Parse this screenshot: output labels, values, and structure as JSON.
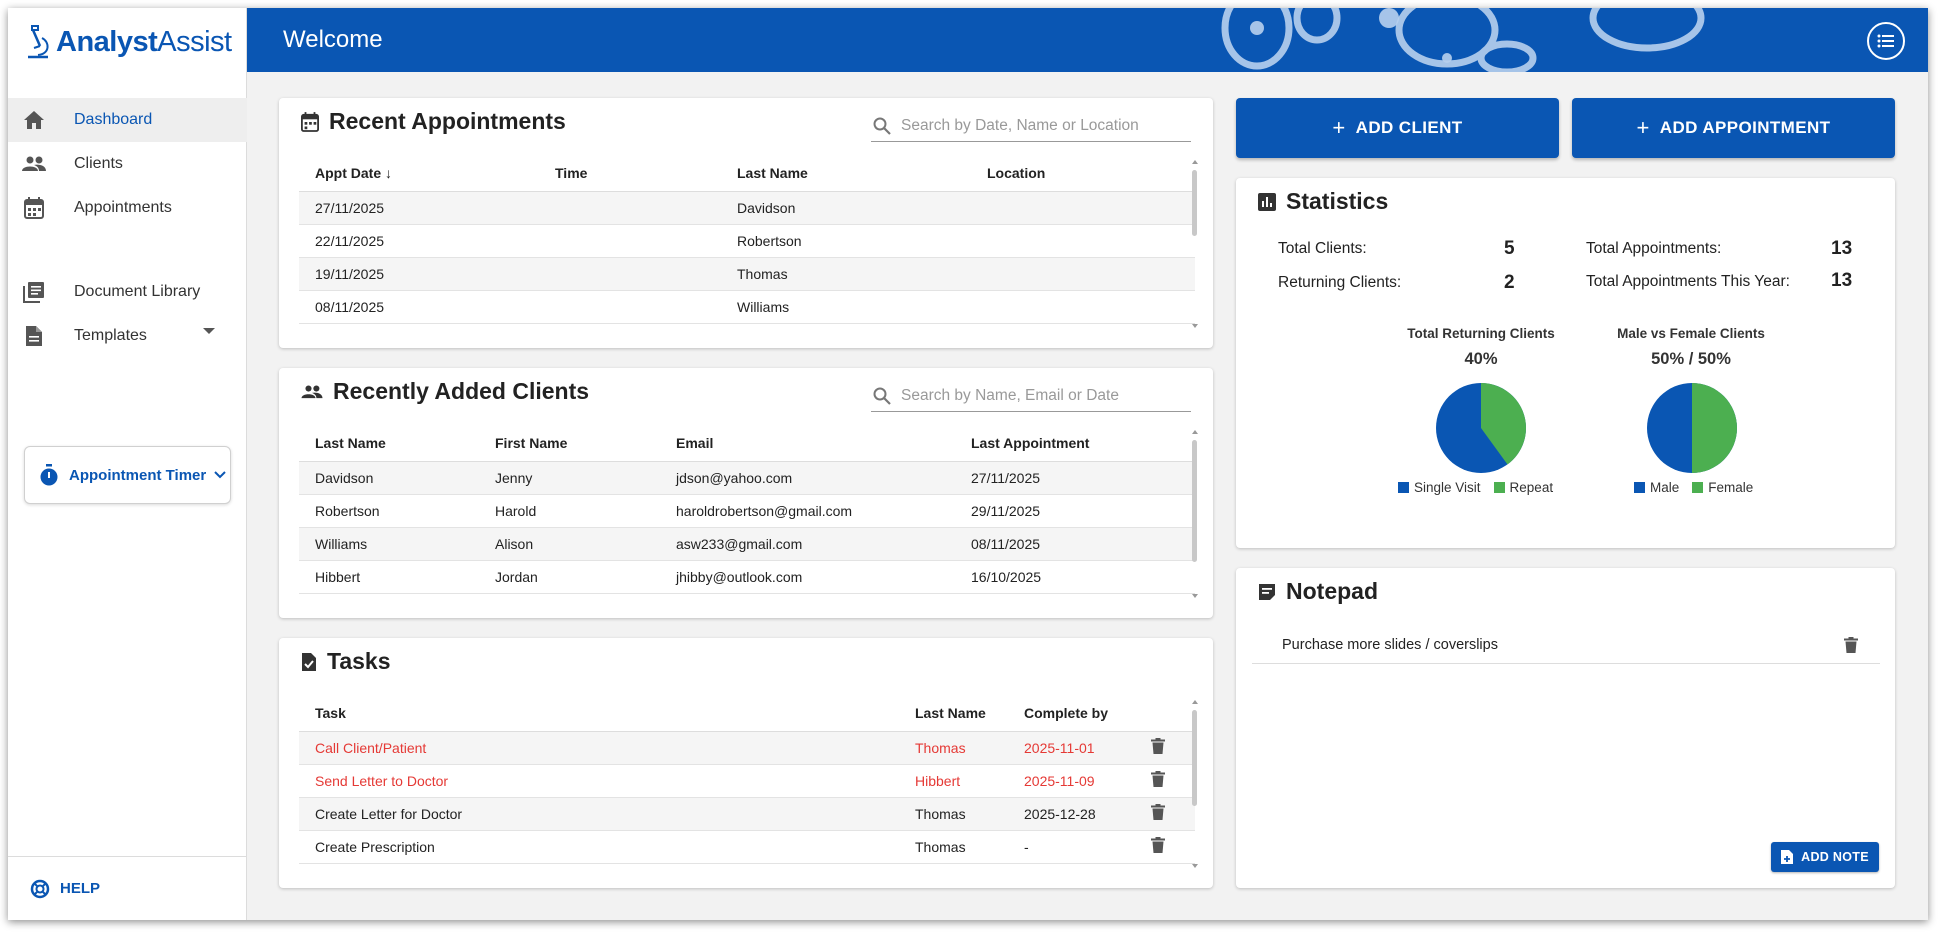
{
  "app": {
    "logo_text_1": "Analyst",
    "logo_text_2": "Assist",
    "header_title": "Welcome"
  },
  "sidebar": {
    "items": [
      {
        "label": "Dashboard",
        "icon": "home-icon",
        "active": true
      },
      {
        "label": "Clients",
        "icon": "people-icon"
      },
      {
        "label": "Appointments",
        "icon": "calendar-icon"
      },
      {
        "label": "Document Library",
        "icon": "library-icon"
      },
      {
        "label": "Templates",
        "icon": "document-icon"
      }
    ],
    "timer_label": "Appointment Timer",
    "help_label": "HELP"
  },
  "appointments": {
    "title": "Recent Appointments",
    "search_placeholder": "Search by Date, Name or Location",
    "columns": [
      "Appt Date",
      "Time",
      "Last Name",
      "Location"
    ],
    "rows": [
      [
        "27/11/2025",
        "",
        "Davidson",
        ""
      ],
      [
        "22/11/2025",
        "",
        "Robertson",
        ""
      ],
      [
        "19/11/2025",
        "",
        "Thomas",
        ""
      ],
      [
        "08/11/2025",
        "",
        "Williams",
        ""
      ]
    ]
  },
  "clients": {
    "title": "Recently Added Clients",
    "search_placeholder": "Search by Name, Email or Date",
    "columns": [
      "Last Name",
      "First Name",
      "Email",
      "Last Appointment"
    ],
    "rows": [
      [
        "Davidson",
        "Jenny",
        "jdson@yahoo.com",
        "27/11/2025"
      ],
      [
        "Robertson",
        "Harold",
        "haroldrobertson@gmail.com",
        "29/11/2025"
      ],
      [
        "Williams",
        "Alison",
        "asw233@gmail.com",
        "08/11/2025"
      ],
      [
        "Hibbert",
        "Jordan",
        "jhibby@outlook.com",
        "16/10/2025"
      ]
    ]
  },
  "tasks": {
    "title": "Tasks",
    "columns": [
      "Task",
      "Last Name",
      "Complete by"
    ],
    "rows": [
      [
        "Call Client/Patient",
        "Thomas",
        "2025-11-01"
      ],
      [
        "Send Letter to Doctor",
        "Hibbert",
        "2025-11-09"
      ],
      [
        "Create Letter for Doctor",
        "Thomas",
        "2025-12-28"
      ],
      [
        "Create Prescription",
        "Thomas",
        "-"
      ]
    ]
  },
  "actions": {
    "add_client": "ADD CLIENT",
    "add_appointment": "ADD APPOINTMENT"
  },
  "statistics": {
    "title": "Statistics",
    "total_clients_label": "Total Clients:",
    "total_clients": "5",
    "returning_clients_label": "Returning Clients:",
    "returning_clients": "2",
    "total_appointments_label": "Total Appointments:",
    "total_appointments": "13",
    "appointments_year_label": "Total Appointments This Year:",
    "appointments_year": "13",
    "pie1_title": "Total Returning Clients",
    "pie1_pct": "40%",
    "pie1_legend": [
      "Single Visit",
      "Repeat"
    ],
    "pie2_title": "Male vs Female Clients",
    "pie2_pct": "50% / 50%",
    "pie2_legend": [
      "Male",
      "Female"
    ],
    "colors": {
      "blue": "#0a56b3",
      "green": "#4caf50"
    }
  },
  "notepad": {
    "title": "Notepad",
    "notes": [
      "Purchase more slides / coverslips"
    ],
    "add_note": "ADD NOTE"
  }
}
